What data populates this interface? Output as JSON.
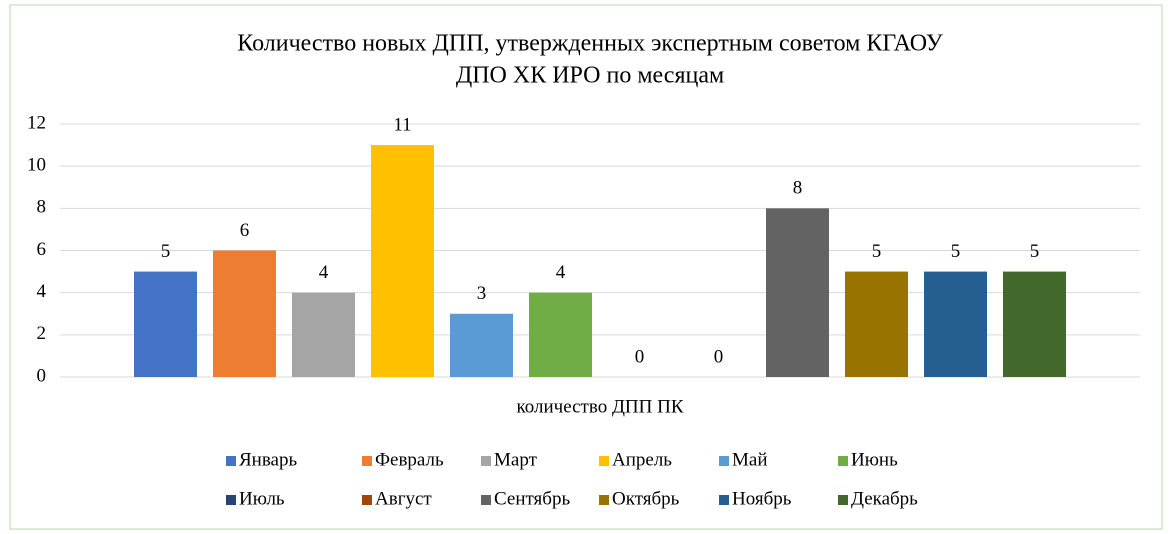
{
  "chart_data": {
    "type": "bar",
    "title": [
      "Количество новых ДПП, утвержденных экспертным советом КГАОУ",
      "ДПО ХК ИРО по месяцам"
    ],
    "categories": [
      "количество ДПП ПК"
    ],
    "series": [
      {
        "name": "Январь",
        "color": "#4472c4",
        "values": [
          5
        ]
      },
      {
        "name": "Февраль",
        "color": "#ed7d31",
        "values": [
          6
        ]
      },
      {
        "name": "Март",
        "color": "#a5a5a5",
        "values": [
          4
        ]
      },
      {
        "name": "Апрель",
        "color": "#ffc000",
        "values": [
          11
        ]
      },
      {
        "name": "Май",
        "color": "#5b9bd5",
        "values": [
          3
        ]
      },
      {
        "name": "Июнь",
        "color": "#70ad47",
        "values": [
          4
        ]
      },
      {
        "name": "Июль",
        "color": "#264478",
        "values": [
          0
        ]
      },
      {
        "name": "Август",
        "color": "#9e480e",
        "values": [
          0
        ]
      },
      {
        "name": "Сентябрь",
        "color": "#636363",
        "values": [
          8
        ]
      },
      {
        "name": "Октябрь",
        "color": "#997300",
        "values": [
          5
        ]
      },
      {
        "name": "Ноябрь",
        "color": "#255e91",
        "values": [
          5
        ]
      },
      {
        "name": "Декабрь",
        "color": "#43682b",
        "values": [
          5
        ]
      }
    ],
    "ylim": [
      0,
      12
    ],
    "yticks": [
      0,
      2,
      4,
      6,
      8,
      10,
      12
    ],
    "grid": true,
    "legend": "bottom",
    "data_labels": true
  }
}
